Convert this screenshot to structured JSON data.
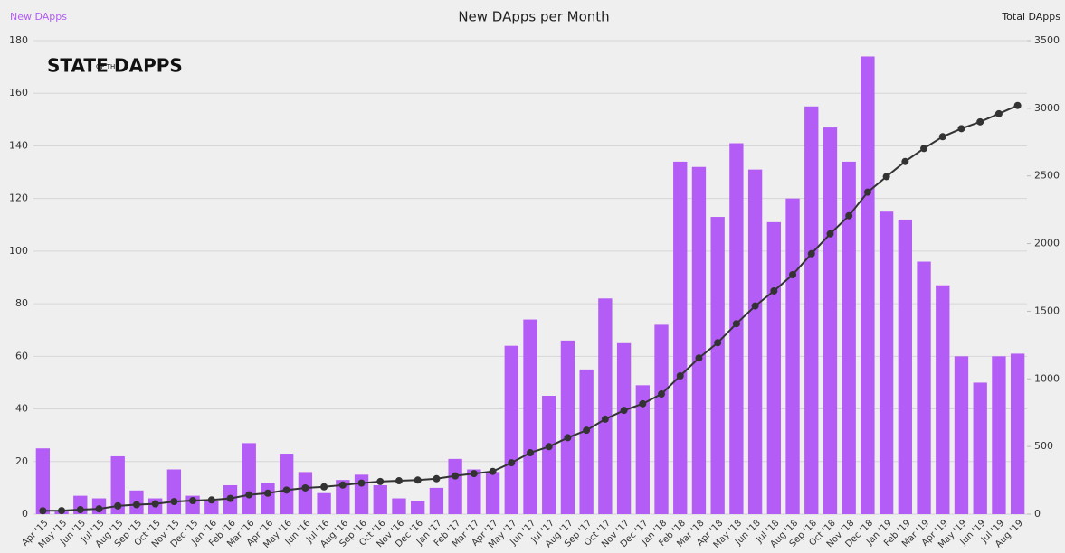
{
  "chart_data": {
    "type": "bar",
    "title": "New DApps per Month",
    "logo": [
      "STATE",
      "OF THE",
      "DAPPS"
    ],
    "categories": [
      "Apr '15",
      "May '15",
      "Jun '15",
      "Jul '15",
      "Aug '15",
      "Sep '15",
      "Oct '15",
      "Nov '15",
      "Dec '15",
      "Jan '16",
      "Feb '16",
      "Mar '16",
      "Apr '16",
      "May '16",
      "Jun '16",
      "Jul '16",
      "Aug '16",
      "Sep '16",
      "Oct '16",
      "Nov '16",
      "Dec '16",
      "Jan '17",
      "Feb '17",
      "Mar '17",
      "Apr '17",
      "May '17",
      "Jun '17",
      "Jul '17",
      "Aug '17",
      "Sep '17",
      "Oct '17",
      "Nov '17",
      "Dec '17",
      "Jan '18",
      "Feb '18",
      "Mar '18",
      "Apr '18",
      "May '18",
      "Jun '18",
      "Jul '18",
      "Aug '18",
      "Sep '18",
      "Oct '18",
      "Nov '18",
      "Dec '18",
      "Jan '19",
      "Feb '19",
      "Mar '19",
      "Apr '19",
      "May '19",
      "Jun '19",
      "Jul '19",
      "Aug '19"
    ],
    "series": [
      {
        "name": "New DApps",
        "color": "#b45cf6",
        "type": "bar",
        "values": [
          25,
          1,
          7,
          6,
          22,
          9,
          6,
          17,
          7,
          5,
          11,
          27,
          12,
          23,
          16,
          8,
          13,
          15,
          11,
          6,
          5,
          10,
          21,
          17,
          16,
          64,
          74,
          45,
          66,
          55,
          82,
          65,
          49,
          72,
          134,
          132,
          113,
          141,
          131,
          111,
          120,
          155,
          147,
          134,
          174,
          115,
          112,
          96,
          87,
          60,
          50,
          60,
          61
        ]
      },
      {
        "name": "Total DApps",
        "color": "#333333",
        "type": "line",
        "axis": "y2",
        "values": [
          25,
          26,
          33,
          39,
          61,
          70,
          76,
          93,
          100,
          105,
          116,
          143,
          155,
          178,
          194,
          202,
          215,
          230,
          241,
          247,
          252,
          262,
          283,
          300,
          316,
          380,
          454,
          499,
          565,
          620,
          702,
          767,
          816,
          888,
          1022,
          1154,
          1267,
          1408,
          1539,
          1650,
          1770,
          1925,
          2072,
          2206,
          2380,
          2495,
          2607,
          2703,
          2790,
          2850,
          2900,
          2960,
          3021
        ]
      }
    ],
    "ylim": [
      0,
      180
    ],
    "yticks": [
      0,
      20,
      40,
      60,
      80,
      100,
      120,
      140,
      160,
      180
    ],
    "y2lim": [
      0,
      3500
    ],
    "y2ticks": [
      0,
      500,
      1000,
      1500,
      2000,
      2500,
      3000,
      3500
    ],
    "grid": true
  }
}
